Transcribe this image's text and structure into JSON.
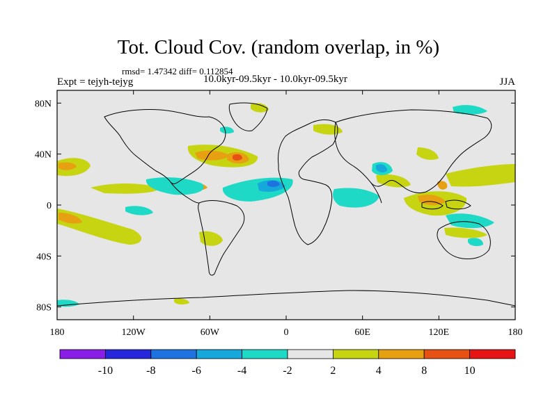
{
  "header": {
    "title": "Tot. Cloud Cov. (random overlap, in %)",
    "stats": "rmsd= 1.47342 diff= 0.112854",
    "experiment": "Expt = tejyh-tejyg",
    "period": "10.0kyr-09.5kyr - 10.0kyr-09.5kyr",
    "season": "JJA"
  },
  "map": {
    "x_ticks": [
      {
        "lon": -180,
        "label": "180"
      },
      {
        "lon": -120,
        "label": "120W"
      },
      {
        "lon": -60,
        "label": "60W"
      },
      {
        "lon": 0,
        "label": "0"
      },
      {
        "lon": 60,
        "label": "60E"
      },
      {
        "lon": 120,
        "label": "120E"
      },
      {
        "lon": 180,
        "label": "180"
      }
    ],
    "y_ticks": [
      {
        "lat": 80,
        "label": "80N"
      },
      {
        "lat": 40,
        "label": "40N"
      },
      {
        "lat": 0,
        "label": "0"
      },
      {
        "lat": -40,
        "label": "40S"
      },
      {
        "lat": -80,
        "label": "80S"
      }
    ],
    "lon_range": [
      -180,
      180
    ],
    "lat_range": [
      -90,
      90
    ]
  },
  "colorbar": {
    "colors": [
      "#8b1ee6",
      "#2626db",
      "#1e73e0",
      "#16a8dc",
      "#1ed9c6",
      "#e6e6e6",
      "#c6d412",
      "#e6a012",
      "#e65214",
      "#e61414"
    ],
    "labels": [
      {
        "after_box": 1,
        "text": "-10"
      },
      {
        "after_box": 2,
        "text": "-8"
      },
      {
        "after_box": 3,
        "text": "-6"
      },
      {
        "after_box": 4,
        "text": "-4"
      },
      {
        "after_box": 5,
        "text": "-2"
      },
      {
        "after_box": 6,
        "text": "2"
      },
      {
        "after_box": 7,
        "text": "4"
      },
      {
        "after_box": 8,
        "text": "8"
      },
      {
        "after_box": 9,
        "text": "10"
      }
    ]
  },
  "colors": {
    "background_field": "#e6e6e6",
    "coastline": "#000000"
  }
}
